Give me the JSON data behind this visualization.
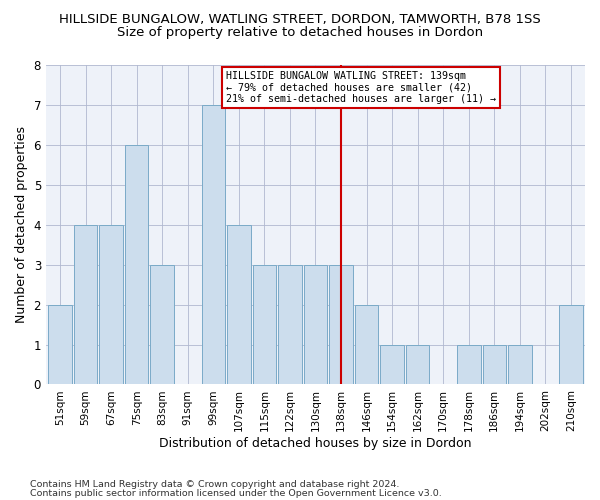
{
  "title": "HILLSIDE BUNGALOW, WATLING STREET, DORDON, TAMWORTH, B78 1SS",
  "subtitle": "Size of property relative to detached houses in Dordon",
  "xlabel": "Distribution of detached houses by size in Dordon",
  "ylabel": "Number of detached properties",
  "categories": [
    "51sqm",
    "59sqm",
    "67sqm",
    "75sqm",
    "83sqm",
    "91sqm",
    "99sqm",
    "107sqm",
    "115sqm",
    "122sqm",
    "130sqm",
    "138sqm",
    "146sqm",
    "154sqm",
    "162sqm",
    "170sqm",
    "178sqm",
    "186sqm",
    "194sqm",
    "202sqm",
    "210sqm"
  ],
  "values": [
    2,
    4,
    4,
    6,
    3,
    0,
    7,
    4,
    3,
    3,
    3,
    3,
    2,
    1,
    1,
    0,
    1,
    1,
    1,
    0,
    2
  ],
  "bar_color": "#ccdded",
  "bar_edge_color": "#7aaac8",
  "highlight_index": 11,
  "highlight_color": "#cc0000",
  "annotation_text": "HILLSIDE BUNGALOW WATLING STREET: 139sqm\n← 79% of detached houses are smaller (42)\n21% of semi-detached houses are larger (11) →",
  "annotation_box_color": "#ffffff",
  "annotation_box_edge": "#cc0000",
  "ylim": [
    0,
    8
  ],
  "yticks": [
    0,
    1,
    2,
    3,
    4,
    5,
    6,
    7,
    8
  ],
  "footer1": "Contains HM Land Registry data © Crown copyright and database right 2024.",
  "footer2": "Contains public sector information licensed under the Open Government Licence v3.0.",
  "bg_color": "#eef2f9",
  "title_fontsize": 9.5,
  "subtitle_fontsize": 9.5,
  "tick_fontsize": 7.5,
  "label_fontsize": 9,
  "footer_fontsize": 6.8
}
